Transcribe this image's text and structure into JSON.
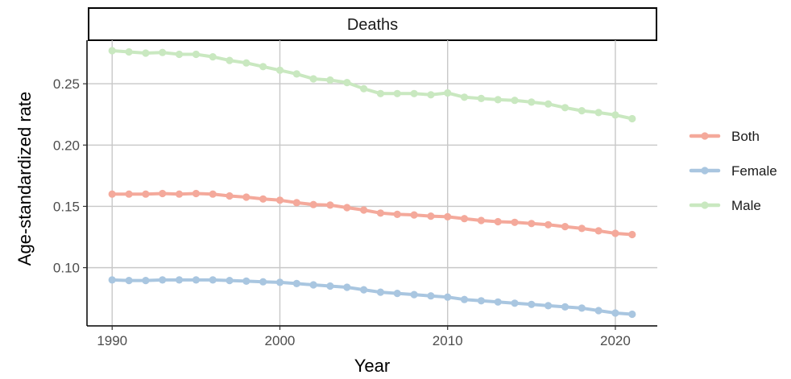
{
  "chart_data": {
    "type": "line",
    "panel_title": "Deaths",
    "xlabel": "Year",
    "ylabel": "Age-standardized rate",
    "xlim": [
      1988.5,
      2022.5
    ],
    "ylim": [
      0.0525,
      0.2855
    ],
    "x_ticks": [
      1990,
      2000,
      2010,
      2020
    ],
    "x_tick_labels": [
      "1990",
      "2000",
      "2010",
      "2020"
    ],
    "y_ticks": [
      0.1,
      0.15,
      0.2,
      0.25
    ],
    "y_tick_labels": [
      "0.10",
      "0.15",
      "0.20",
      "0.25"
    ],
    "grid": true,
    "legend_position": "right",
    "x": [
      1990,
      1991,
      1992,
      1993,
      1994,
      1995,
      1996,
      1997,
      1998,
      1999,
      2000,
      2001,
      2002,
      2003,
      2004,
      2005,
      2006,
      2007,
      2008,
      2009,
      2010,
      2011,
      2012,
      2013,
      2014,
      2015,
      2016,
      2017,
      2018,
      2019,
      2020,
      2021
    ],
    "series": [
      {
        "name": "Both",
        "color": "#f4a99b",
        "values": [
          0.16,
          0.16,
          0.16,
          0.1605,
          0.16,
          0.1605,
          0.16,
          0.1585,
          0.1575,
          0.156,
          0.155,
          0.153,
          0.1515,
          0.151,
          0.149,
          0.147,
          0.1445,
          0.1435,
          0.143,
          0.142,
          0.1415,
          0.14,
          0.1385,
          0.1375,
          0.137,
          0.136,
          0.135,
          0.1335,
          0.132,
          0.13,
          0.128,
          0.127
        ]
      },
      {
        "name": "Female",
        "color": "#a9c6e0",
        "values": [
          0.09,
          0.0895,
          0.0895,
          0.09,
          0.09,
          0.09,
          0.09,
          0.0895,
          0.089,
          0.0885,
          0.088,
          0.087,
          0.086,
          0.085,
          0.084,
          0.082,
          0.08,
          0.079,
          0.078,
          0.077,
          0.076,
          0.074,
          0.073,
          0.072,
          0.071,
          0.07,
          0.069,
          0.068,
          0.067,
          0.065,
          0.063,
          0.062
        ]
      },
      {
        "name": "Male",
        "color": "#c9e8c0",
        "values": [
          0.277,
          0.276,
          0.275,
          0.2755,
          0.274,
          0.274,
          0.272,
          0.269,
          0.267,
          0.264,
          0.261,
          0.258,
          0.254,
          0.253,
          0.251,
          0.246,
          0.242,
          0.242,
          0.242,
          0.241,
          0.2425,
          0.239,
          0.238,
          0.237,
          0.2365,
          0.235,
          0.2335,
          0.2305,
          0.228,
          0.2265,
          0.2245,
          0.2215
        ]
      }
    ]
  }
}
